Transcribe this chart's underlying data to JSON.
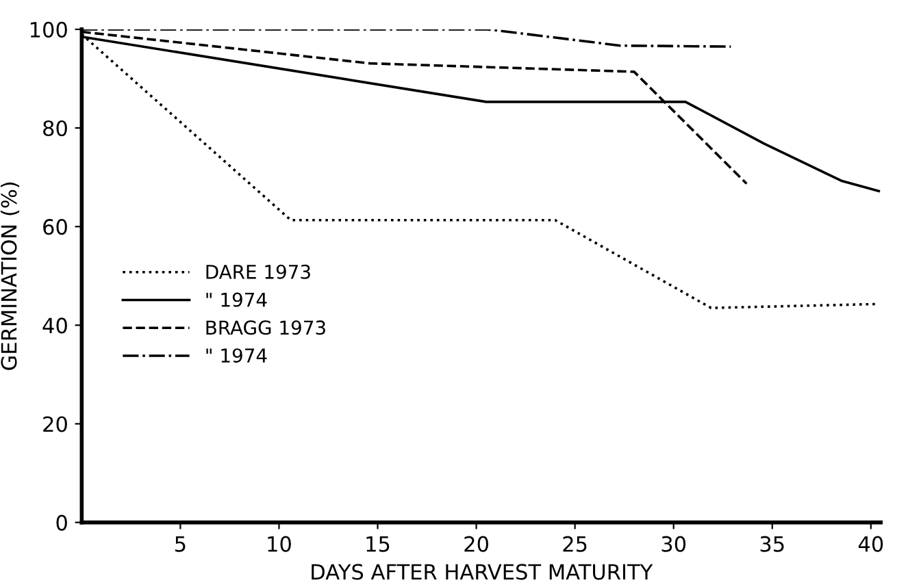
{
  "chart_data": {
    "type": "line",
    "xlabel": "DAYS AFTER HARVEST MATURITY",
    "ylabel": "GERMINATION (%)",
    "xlim": [
      0,
      40.5
    ],
    "ylim": [
      0,
      100
    ],
    "xticks": [
      5,
      10,
      15,
      20,
      25,
      30,
      35,
      40
    ],
    "yticks": [
      0,
      20,
      40,
      60,
      80,
      100
    ],
    "grid": false,
    "legend": "left",
    "marker": "none",
    "series": [
      {
        "name": "DARE 1973",
        "color": "#000000",
        "line_style": "dotted",
        "x": [
          0,
          10.6,
          24.0,
          31.9,
          40.4
        ],
        "values": [
          99,
          61.3,
          61.3,
          43.5,
          44.3
        ]
      },
      {
        "name": "\" 1974",
        "color": "#000000",
        "line_style": "solid",
        "x": [
          0,
          20.5,
          30.6,
          34.6,
          38.5,
          40.4
        ],
        "values": [
          98.5,
          85.3,
          85.3,
          76.8,
          69.3,
          67.2
        ]
      },
      {
        "name": "BRAGG 1973",
        "color": "#000000",
        "line_style": "dashed",
        "x": [
          0,
          14.6,
          28.0,
          33.7
        ],
        "values": [
          99.5,
          93.1,
          91.4,
          68.7
        ]
      },
      {
        "name": "\" 1974",
        "color": "#000000",
        "line_style": "dashdot",
        "x": [
          0,
          20.6,
          27.3,
          32.9
        ],
        "values": [
          100,
          100,
          96.7,
          96.5
        ]
      }
    ]
  }
}
